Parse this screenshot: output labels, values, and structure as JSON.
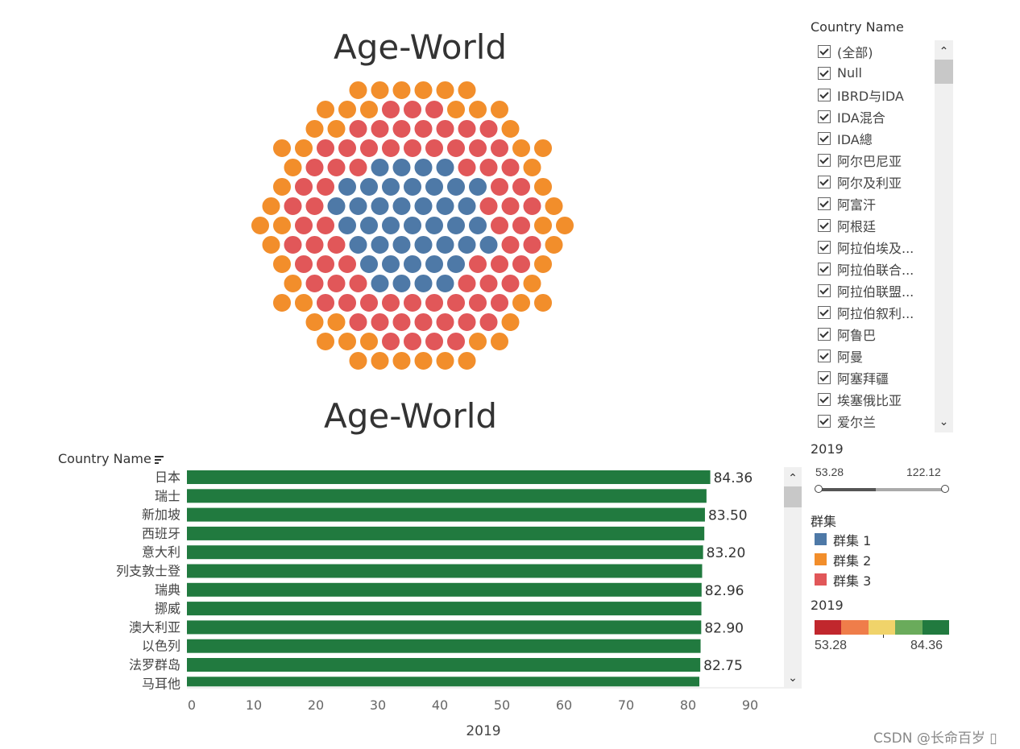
{
  "bubble_view": {
    "title": "Age-World",
    "colors": {
      "cluster1": "#4e79a7",
      "cluster2": "#f28e2b",
      "cluster3": "#e15759"
    }
  },
  "bar_view": {
    "title": "Age-World",
    "column_header": "Country Name",
    "sort_icon": "sort-descending-icon",
    "bar_color": "#217a3f"
  },
  "chart_data": {
    "type": "bar",
    "orientation": "horizontal",
    "categories": [
      "日本",
      "瑞士",
      "新加坡",
      "西班牙",
      "意大利",
      "列支敦士登",
      "瑞典",
      "挪威",
      "澳大利亚",
      "以色列",
      "法罗群岛",
      "马耳他"
    ],
    "values": [
      84.36,
      83.75,
      83.5,
      83.4,
      83.2,
      83.05,
      82.96,
      82.93,
      82.9,
      82.8,
      82.75,
      82.6
    ],
    "data_labels": [
      "84.36",
      "",
      "83.50",
      "",
      "83.20",
      "",
      "82.96",
      "",
      "82.90",
      "",
      "82.75",
      ""
    ],
    "xlabel": "2019",
    "ylabel": "Country Name",
    "xlim": [
      0,
      97
    ],
    "xticks": [
      "0",
      "10",
      "20",
      "30",
      "40",
      "50",
      "60",
      "70",
      "80",
      "90"
    ],
    "grid": false
  },
  "filter": {
    "header": "Country Name",
    "items": [
      "(全部)",
      "Null",
      "IBRD与IDA",
      "IDA混合",
      "IDA總",
      "阿尔巴尼亚",
      "阿尔及利亚",
      "阿富汗",
      "阿根廷",
      "阿拉伯埃及...",
      "阿拉伯联合...",
      "阿拉伯联盟...",
      "阿拉伯叙利...",
      "阿鲁巴",
      "阿曼",
      "阿塞拜疆",
      "埃塞俄比亚",
      "爱尔兰"
    ],
    "checked": true
  },
  "range_filter": {
    "title": "2019",
    "min_label": "53.28",
    "max_label": "122.12",
    "fill_fraction": 0.45
  },
  "cluster_legend": {
    "title": "群集",
    "items": [
      {
        "label": "群集 1",
        "color": "#4e79a7"
      },
      {
        "label": "群集 2",
        "color": "#f28e2b"
      },
      {
        "label": "群集 3",
        "color": "#e15759"
      }
    ]
  },
  "color_legend": {
    "title": "2019",
    "min_label": "53.28",
    "max_label": "84.36",
    "colors": [
      "#c1272d",
      "#ef7d4a",
      "#f0d36a",
      "#6aab5b",
      "#217a3f"
    ]
  },
  "watermark": "CSDN @长命百岁 ▯"
}
